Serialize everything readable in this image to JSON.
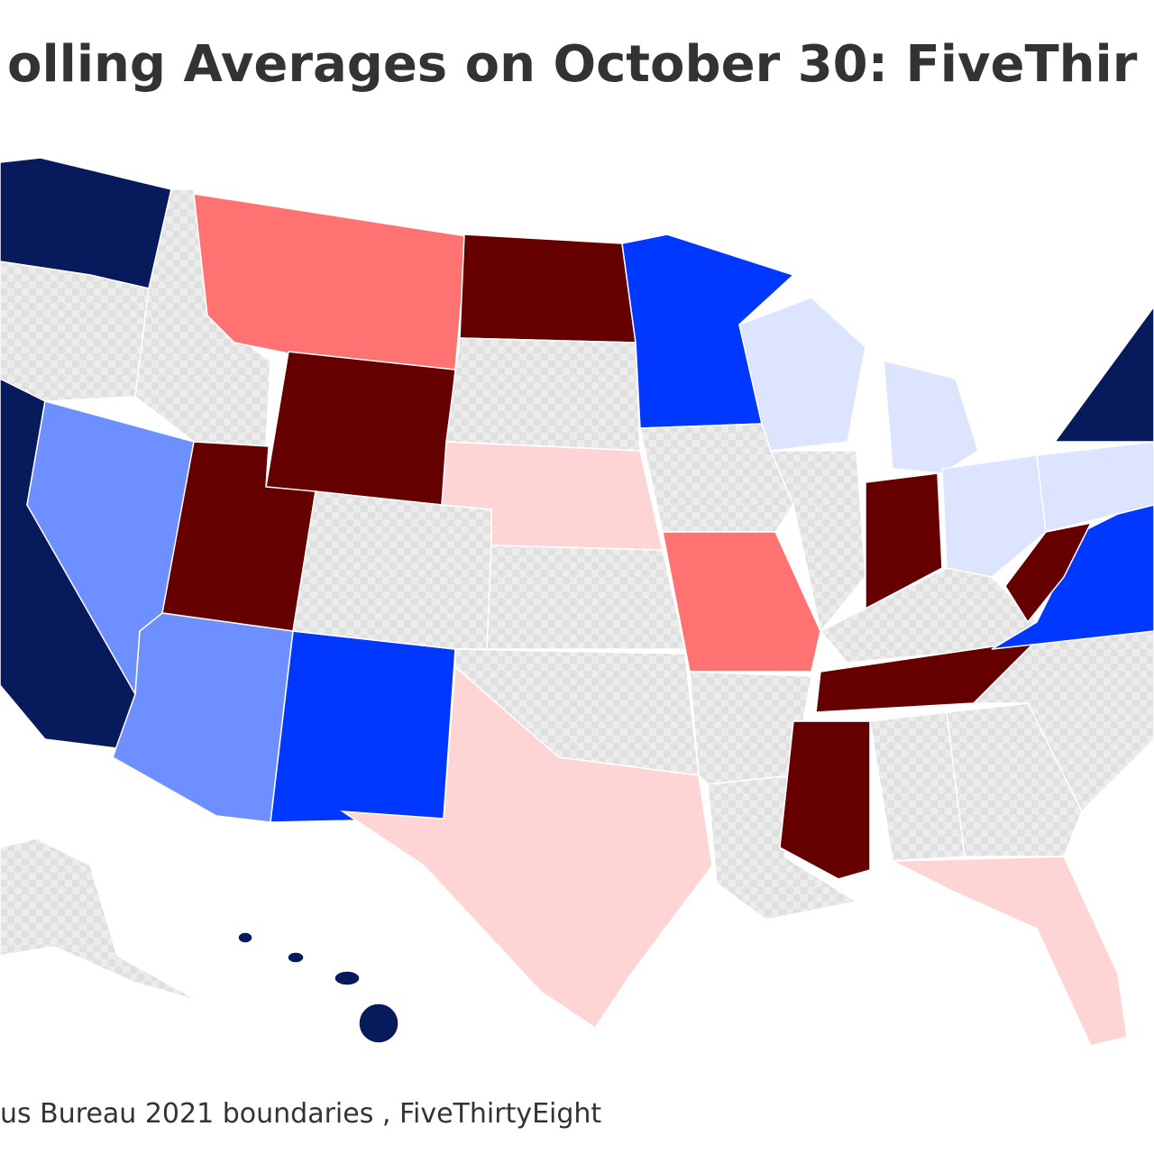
{
  "header": {
    "title": "olling Averages on October 30: FiveThir"
  },
  "footer": {
    "source": "us Bureau 2021 boundaries , FiveThirtyEight"
  }
}
